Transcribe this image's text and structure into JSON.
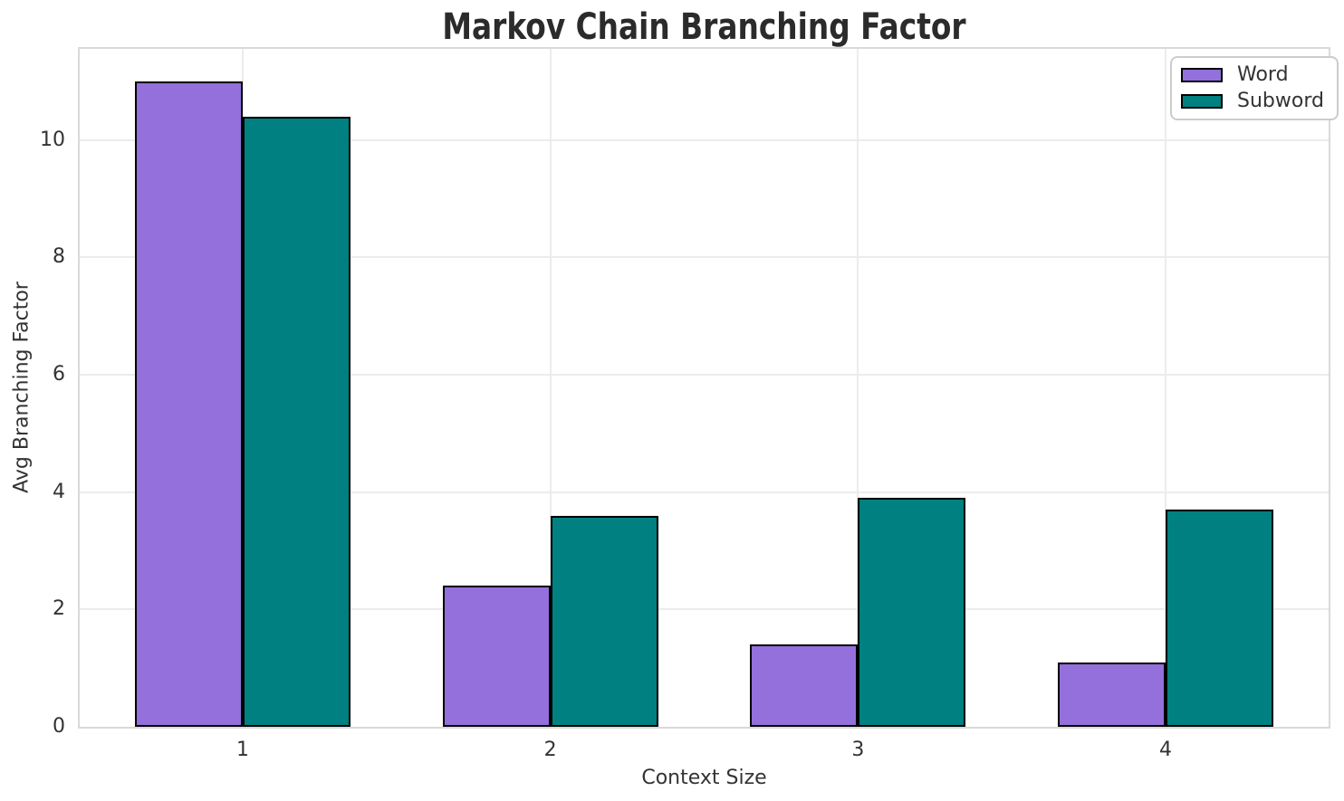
{
  "chart_data": {
    "type": "bar",
    "title": "Markov Chain Branching Factor",
    "xlabel": "Context Size",
    "ylabel": "Avg Branching Factor",
    "categories": [
      "1",
      "2",
      "3",
      "4"
    ],
    "series": [
      {
        "name": "Word",
        "color": "#9370DB",
        "values": [
          11.0,
          2.4,
          1.4,
          1.1
        ]
      },
      {
        "name": "Subword",
        "color": "#008080",
        "values": [
          10.4,
          3.6,
          3.9,
          3.7
        ]
      }
    ],
    "ylim": [
      0,
      11.55
    ],
    "yticks": [
      0,
      2,
      4,
      6,
      8,
      10
    ],
    "bar_edge_color": "#000000",
    "grid": true,
    "legend_position": "upper right",
    "colors": {
      "grid": "#ececec",
      "spine": "#d9d9d9",
      "tick_text": "#333333",
      "title_text": "#2b2b2b",
      "legend_border": "#cccccc",
      "background": "#ffffff"
    }
  }
}
